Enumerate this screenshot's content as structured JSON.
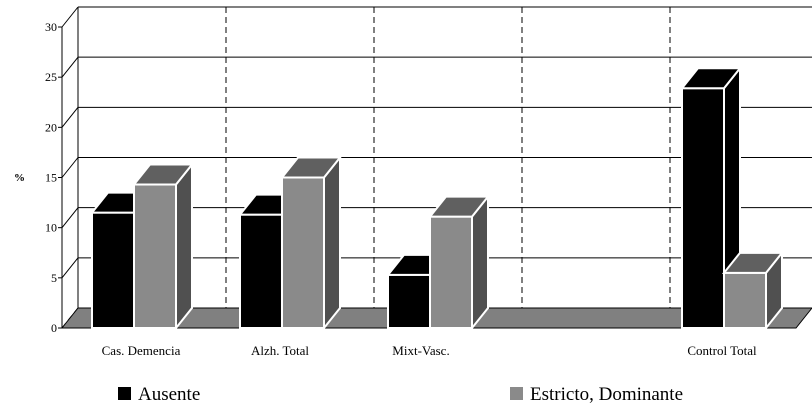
{
  "chart_data": {
    "type": "bar",
    "ylabel": "%",
    "ylim": [
      0,
      30
    ],
    "yticks": [
      0,
      5,
      10,
      15,
      20,
      25,
      30
    ],
    "categories": [
      "Cas. Demencia",
      "Alzh. Total",
      "Mixt-Vasc.",
      "",
      "Control Total"
    ],
    "series": [
      {
        "name": "Ausente",
        "values": [
          11.5,
          11.3,
          5.3,
          null,
          23.9
        ],
        "color": "#000000"
      },
      {
        "name": "Estricto, Dominante",
        "values": [
          14.3,
          15.0,
          11.1,
          null,
          5.5
        ],
        "color": "#8a8a8a"
      }
    ],
    "grid": true,
    "legend": "bottom"
  }
}
